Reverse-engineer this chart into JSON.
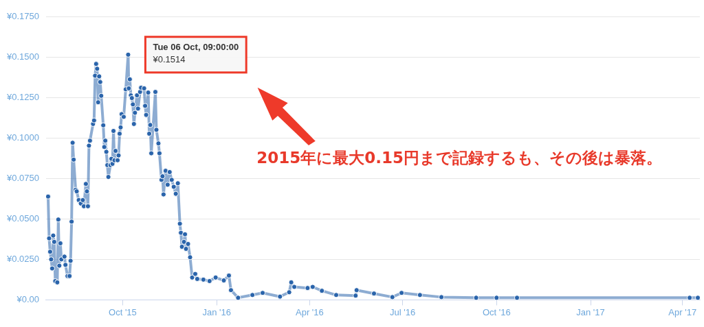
{
  "chart_data": {
    "type": "line",
    "color": "#2a64ab",
    "marker": "circle",
    "grid": "y",
    "legend": false,
    "x": [
      "2015-07-20",
      "2015-07-21",
      "2015-07-22",
      "2015-07-23",
      "2015-07-24",
      "2015-07-25",
      "2015-07-26",
      "2015-07-27",
      "2015-07-29",
      "2015-07-30",
      "2015-07-31",
      "2015-08-01",
      "2015-08-02",
      "2015-08-05",
      "2015-08-06",
      "2015-08-08",
      "2015-08-10",
      "2015-08-11",
      "2015-08-12",
      "2015-08-13",
      "2015-08-14",
      "2015-08-16",
      "2015-08-17",
      "2015-08-19",
      "2015-08-21",
      "2015-08-23",
      "2015-08-24",
      "2015-08-26",
      "2015-08-27",
      "2015-08-28",
      "2015-08-29",
      "2015-08-30",
      "2015-09-02",
      "2015-09-03",
      "2015-09-04",
      "2015-09-05",
      "2015-09-06",
      "2015-09-07",
      "2015-09-08",
      "2015-09-09",
      "2015-09-10",
      "2015-09-12",
      "2015-09-13",
      "2015-09-14",
      "2015-09-15",
      "2015-09-16",
      "2015-09-17",
      "2015-09-19",
      "2015-09-20",
      "2015-09-21",
      "2015-09-22",
      "2015-09-23",
      "2015-09-24",
      "2015-09-26",
      "2015-09-27",
      "2015-09-28",
      "2015-09-29",
      "2015-09-30",
      "2015-10-02",
      "2015-10-04",
      "2015-10-06T09:00",
      "2015-10-07",
      "2015-10-08",
      "2015-10-09",
      "2015-10-10",
      "2015-10-11",
      "2015-10-12",
      "2015-10-13",
      "2015-10-15",
      "2015-10-16",
      "2015-10-18",
      "2015-10-19",
      "2015-10-22",
      "2015-10-23",
      "2015-10-24",
      "2015-10-26",
      "2015-10-27",
      "2015-10-28",
      "2015-10-29",
      "2015-11-02",
      "2015-11-03",
      "2015-11-05",
      "2015-11-06",
      "2015-11-08",
      "2015-11-09",
      "2015-11-10",
      "2015-11-12",
      "2015-11-14",
      "2015-11-16",
      "2015-11-18",
      "2015-11-20",
      "2015-11-22",
      "2015-11-24",
      "2015-11-26",
      "2015-11-27",
      "2015-11-28",
      "2015-11-30",
      "2015-12-01",
      "2015-12-02",
      "2015-12-04",
      "2015-12-06",
      "2015-12-08",
      "2015-12-11",
      "2015-12-13",
      "2015-12-19",
      "2015-12-25",
      "2015-12-31",
      "2016-01-08",
      "2016-01-13",
      "2016-01-15",
      "2016-01-22",
      "2016-02-05",
      "2016-02-15",
      "2016-03-03",
      "2016-03-12",
      "2016-03-14",
      "2016-03-17",
      "2016-03-30",
      "2016-04-04",
      "2016-04-13",
      "2016-04-27",
      "2016-05-16",
      "2016-05-17",
      "2016-06-03",
      "2016-06-21",
      "2016-06-30",
      "2016-07-18",
      "2016-08-08",
      "2016-09-11",
      "2016-10-01",
      "2016-10-21",
      "2017-04-08",
      "2017-04-16"
    ],
    "values": [
      0.0638,
      0.038,
      0.0297,
      0.025,
      0.0194,
      0.0397,
      0.0358,
      0.0116,
      0.0108,
      0.0496,
      0.0211,
      0.0349,
      0.025,
      0.0267,
      0.0216,
      0.0147,
      0.0147,
      0.0241,
      0.0483,
      0.097,
      0.0866,
      0.068,
      0.067,
      0.0616,
      0.0595,
      0.0616,
      0.0578,
      0.0716,
      0.067,
      0.0578,
      0.0952,
      0.0983,
      0.1086,
      0.1108,
      0.1384,
      0.1457,
      0.1427,
      0.122,
      0.138,
      0.1345,
      0.126,
      0.1078,
      0.0944,
      0.0983,
      0.0914,
      0.0832,
      0.0759,
      0.0832,
      0.0871,
      0.084,
      0.1043,
      0.0862,
      0.092,
      0.0862,
      0.0892,
      0.1026,
      0.1065,
      0.1147,
      0.113,
      0.13,
      0.1514,
      0.1306,
      0.1362,
      0.1263,
      0.1246,
      0.1207,
      0.1086,
      0.1155,
      0.1263,
      0.1181,
      0.1284,
      0.131,
      0.1306,
      0.1198,
      0.1142,
      0.128,
      0.1026,
      0.108,
      0.0905,
      0.1284,
      0.105,
      0.0966,
      0.0905,
      0.0741,
      0.0763,
      0.0651,
      0.0797,
      0.0711,
      0.0789,
      0.0741,
      0.0698,
      0.0655,
      0.072,
      0.047,
      0.0414,
      0.0328,
      0.0358,
      0.0405,
      0.0315,
      0.0345,
      0.0263,
      0.0138,
      0.016,
      0.0129,
      0.0125,
      0.0116,
      0.0138,
      0.012,
      0.015,
      0.006,
      0.0013,
      0.003,
      0.0043,
      0.002,
      0.0047,
      0.0108,
      0.008,
      0.0073,
      0.008,
      0.0056,
      0.003,
      0.0026,
      0.006,
      0.0039,
      0.0017,
      0.0043,
      0.003,
      0.0017,
      0.0013,
      0.0013,
      0.0013,
      0.0013,
      0.0013
    ],
    "xlim": [
      "2015-07-18",
      "2017-04-18"
    ],
    "xticks": [
      {
        "value": "2015-10-01",
        "label": "Oct '15"
      },
      {
        "value": "2016-01-01",
        "label": "Jan '16"
      },
      {
        "value": "2016-04-01",
        "label": "Apr '16"
      },
      {
        "value": "2016-07-01",
        "label": "Jul '16"
      },
      {
        "value": "2016-10-01",
        "label": "Oct '16"
      },
      {
        "value": "2017-01-01",
        "label": "Jan '17"
      },
      {
        "value": "2017-04-01",
        "label": "Apr '17"
      }
    ],
    "ylim": [
      0,
      0.175
    ],
    "yticks": [
      {
        "value": 0,
        "label": "¥0.00"
      },
      {
        "value": 0.025,
        "label": "¥0.0250"
      },
      {
        "value": 0.05,
        "label": "¥0.0500"
      },
      {
        "value": 0.075,
        "label": "¥0.0750"
      },
      {
        "value": 0.1,
        "label": "¥0.1000"
      },
      {
        "value": 0.125,
        "label": "¥0.1250"
      },
      {
        "value": 0.15,
        "label": "¥0.1500"
      },
      {
        "value": 0.175,
        "label": "¥0.1750"
      }
    ],
    "annotations": [
      {
        "text": "Tue 06 Oct, 09:00:00",
        "x": "2015-10-06T09:00",
        "y": 0.1514
      },
      {
        "text": "¥0.1514",
        "x": "2015-10-06T09:00",
        "y": 0.1514
      },
      "2015年に最大0.15円まで記録するも、その後は暴落。"
    ]
  }
}
